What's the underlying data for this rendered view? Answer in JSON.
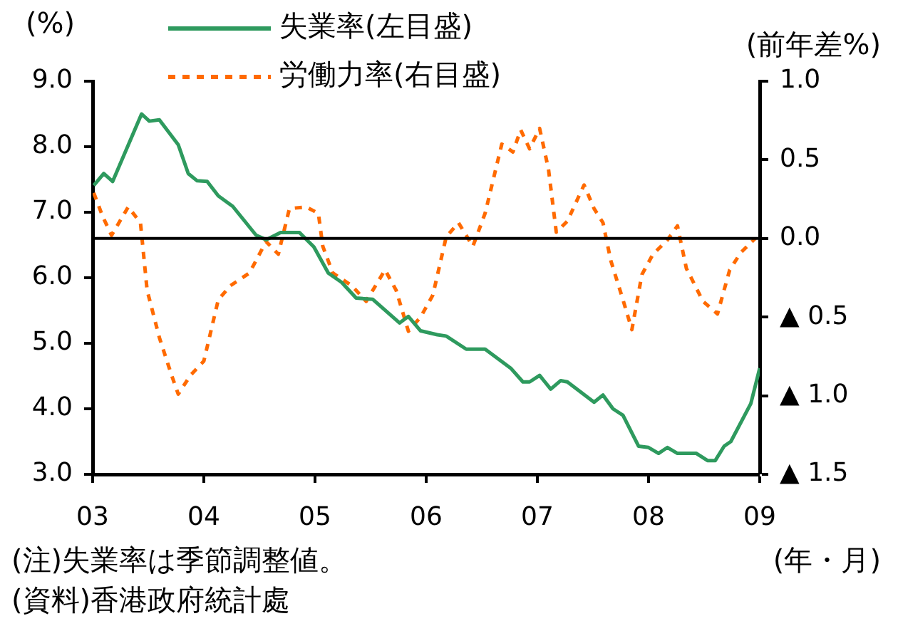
{
  "chart_data": {
    "type": "line",
    "ylabel": "(%)",
    "y2label": "(前年差%)",
    "xlabel": "(年・月)",
    "annotations": [
      "(注)失業率は季節調整値。",
      "(資料)香港政府統計處"
    ],
    "legend": "top",
    "grid": false,
    "marker": "none",
    "xlim": [
      2003,
      2009
    ],
    "xticks": [
      {
        "value": 2003,
        "label": "03"
      },
      {
        "value": 2004,
        "label": "04"
      },
      {
        "value": 2005,
        "label": "05"
      },
      {
        "value": 2006,
        "label": "06"
      },
      {
        "value": 2007,
        "label": "07"
      },
      {
        "value": 2008,
        "label": "08"
      },
      {
        "value": 2009,
        "label": "09"
      }
    ],
    "ylim": [
      3,
      9
    ],
    "yticks": [
      {
        "value": 3,
        "label": "3.0"
      },
      {
        "value": 4,
        "label": "4.0"
      },
      {
        "value": 5,
        "label": "5.0"
      },
      {
        "value": 6,
        "label": "6.0"
      },
      {
        "value": 7,
        "label": "7.0"
      },
      {
        "value": 8,
        "label": "8.0"
      },
      {
        "value": 9,
        "label": "9.0"
      }
    ],
    "y2lim": [
      -1.5,
      1
    ],
    "y2ticks": [
      {
        "value": -1.5,
        "label": "▲ 1.5"
      },
      {
        "value": -1,
        "label": "▲ 1.0"
      },
      {
        "value": -0.5,
        "label": "▲ 0.5"
      },
      {
        "value": 0,
        "label": "0.0"
      },
      {
        "value": 0.5,
        "label": "0.5"
      },
      {
        "value": 1,
        "label": "1.0"
      }
    ],
    "ref_lines": [
      {
        "axis": "y2",
        "value": 0,
        "color": "#000000"
      }
    ],
    "series": [
      {
        "name": "失業率(左目盛)",
        "color": "#2e9a5e",
        "line_style": "solid",
        "x": [
          2003.01,
          2003.1,
          2003.18,
          2003.44,
          2003.51,
          2003.6,
          2003.77,
          2003.86,
          2003.94,
          2004.03,
          2004.13,
          2004.26,
          2004.47,
          2004.56,
          2004.69,
          2004.86,
          2004.99,
          2005.12,
          2005.24,
          2005.37,
          2005.52,
          2005.76,
          2005.84,
          2005.95,
          2006.1,
          2006.18,
          2006.36,
          2006.53,
          2006.76,
          2006.87,
          2006.93,
          2007.02,
          2007.12,
          2007.21,
          2007.27,
          2007.51,
          2007.59,
          2007.68,
          2007.77,
          2007.91,
          2008,
          2008.09,
          2008.17,
          2008.26,
          2008.43,
          2008.53,
          2008.6,
          2008.68,
          2008.74,
          2008.92,
          2009
        ],
        "values": [
          7.41,
          7.59,
          7.47,
          8.5,
          8.39,
          8.41,
          8.03,
          7.59,
          7.48,
          7.47,
          7.25,
          7.09,
          6.65,
          6.58,
          6.69,
          6.69,
          6.47,
          6.07,
          5.93,
          5.69,
          5.67,
          5.31,
          5.41,
          5.19,
          5.13,
          5.11,
          4.91,
          4.91,
          4.62,
          4.41,
          4.41,
          4.51,
          4.3,
          4.43,
          4.41,
          4.1,
          4.21,
          4,
          3.9,
          3.43,
          3.41,
          3.32,
          3.41,
          3.32,
          3.32,
          3.21,
          3.21,
          3.43,
          3.5,
          4.08,
          4.62
        ]
      },
      {
        "name": "労働力率(右目盛)",
        "color": "#ff6a00",
        "line_style": "dashed",
        "axis": "y2",
        "x": [
          2003.01,
          2003.09,
          2003.17,
          2003.32,
          2003.43,
          2003.49,
          2003.6,
          2003.71,
          2003.77,
          2003.88,
          2004,
          2004.13,
          2004.24,
          2004.41,
          2004.56,
          2004.67,
          2004.77,
          2004.92,
          2005.03,
          2005.07,
          2005.16,
          2005.33,
          2005.46,
          2005.63,
          2005.73,
          2005.84,
          2005.95,
          2006.06,
          2006.18,
          2006.29,
          2006.42,
          2006.53,
          2006.68,
          2006.78,
          2006.85,
          2006.93,
          2007.02,
          2007.1,
          2007.17,
          2007.27,
          2007.42,
          2007.51,
          2007.59,
          2007.66,
          2007.77,
          2007.85,
          2007.94,
          2008.04,
          2008.17,
          2008.26,
          2008.34,
          2008.49,
          2008.62,
          2008.73,
          2008.83,
          2008.96
        ],
        "values": [
          0.29,
          0.14,
          0.02,
          0.2,
          0.1,
          -0.33,
          -0.63,
          -0.87,
          -0.99,
          -0.87,
          -0.78,
          -0.39,
          -0.3,
          -0.22,
          -0.02,
          -0.1,
          0.19,
          0.2,
          0.16,
          -0.05,
          -0.22,
          -0.3,
          -0.4,
          -0.2,
          -0.33,
          -0.59,
          -0.5,
          -0.36,
          0.01,
          0.1,
          -0.05,
          0.16,
          0.6,
          0.55,
          0.69,
          0.57,
          0.7,
          0.44,
          0.04,
          0.11,
          0.34,
          0.19,
          0.1,
          -0.14,
          -0.39,
          -0.58,
          -0.23,
          -0.1,
          -0.01,
          0.08,
          -0.19,
          -0.4,
          -0.48,
          -0.2,
          -0.09,
          0
        ]
      }
    ]
  }
}
